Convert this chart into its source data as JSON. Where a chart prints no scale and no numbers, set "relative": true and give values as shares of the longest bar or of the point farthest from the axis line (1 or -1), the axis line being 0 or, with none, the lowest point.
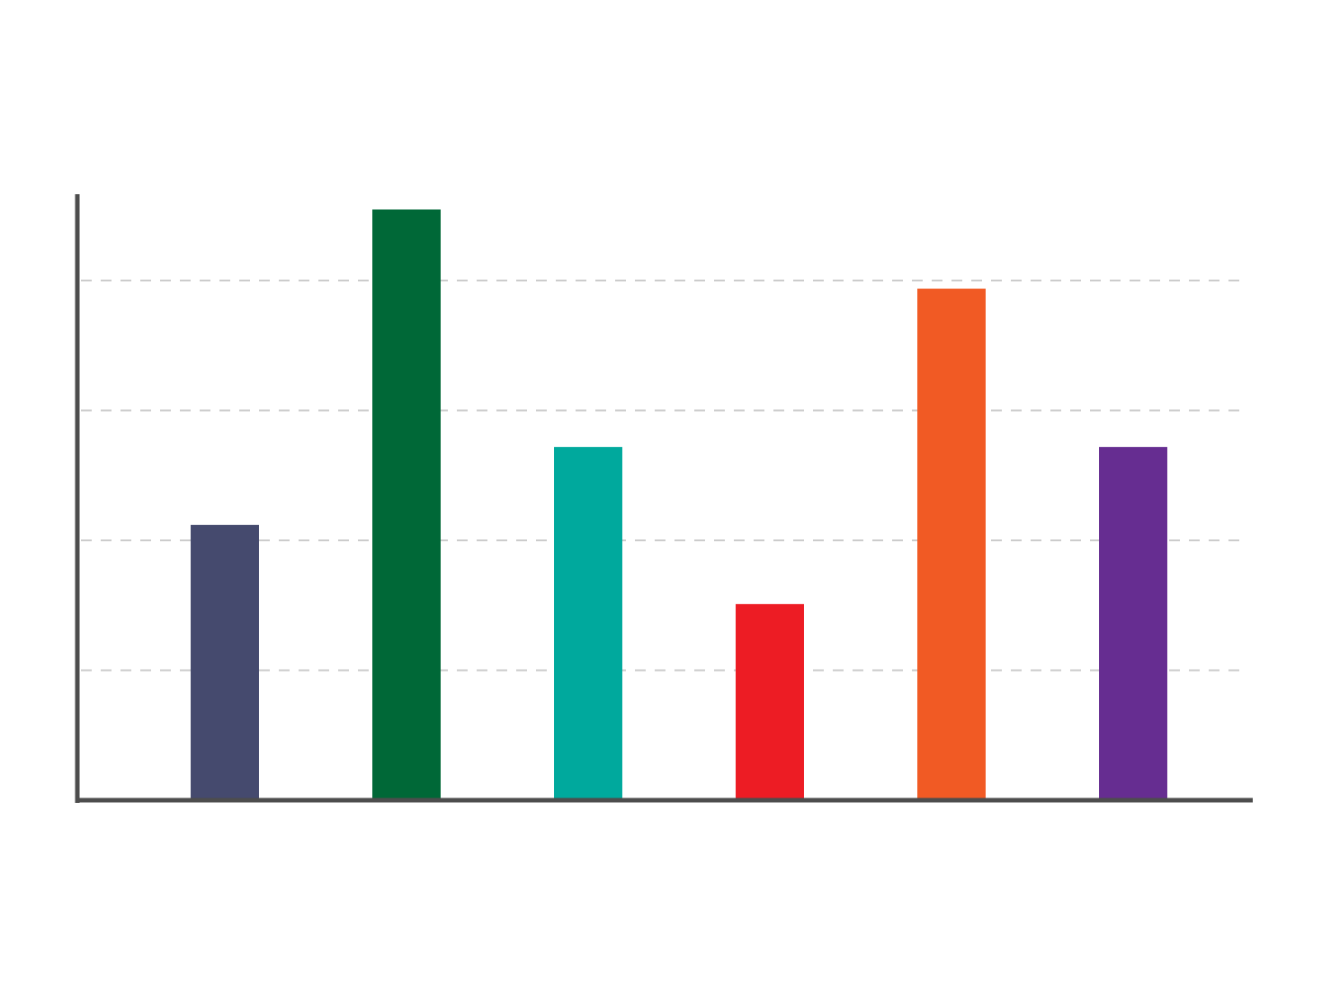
{
  "chart_data": {
    "type": "bar",
    "relative": true,
    "categories": [
      null,
      null,
      null,
      null,
      null,
      null
    ],
    "values": [
      0.466,
      1,
      0.598,
      0.332,
      0.866,
      0.598
    ],
    "colors": [
      "#454a6e",
      "#006837",
      "#00a99d",
      "#ed1c24",
      "#f15a24",
      "#662d91"
    ],
    "grid": "y"
  }
}
